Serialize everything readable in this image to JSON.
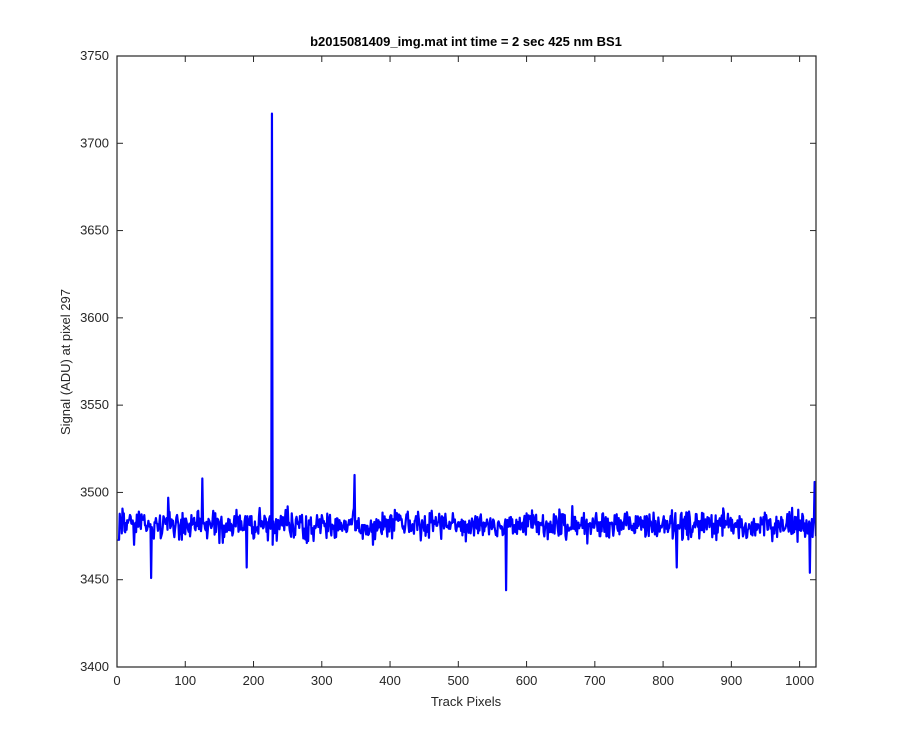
{
  "chart_data": {
    "type": "line",
    "title": "b2015081409_img.mat int time = 2 sec  425 nm BS1",
    "xlabel": "Track Pixels",
    "ylabel": "Signal (ADU) at pixel 297",
    "xlim": [
      0,
      1024
    ],
    "ylim": [
      3400,
      3750
    ],
    "xticks": [
      0,
      100,
      200,
      300,
      400,
      500,
      600,
      700,
      800,
      900,
      1000
    ],
    "yticks": [
      3400,
      3450,
      3500,
      3550,
      3600,
      3650,
      3700,
      3750
    ],
    "grid": false,
    "box": true,
    "line_color": "#0000ff",
    "series": [
      {
        "x_start": 1,
        "x_step": 1,
        "noise_mean": 3481,
        "noise_range": [
          3444,
          3510
        ],
        "samples": 1024,
        "values_sampled": [
          [
            1,
            3473
          ],
          [
            10,
            3488
          ],
          [
            25,
            3470
          ],
          [
            40,
            3487
          ],
          [
            50,
            3451
          ],
          [
            60,
            3478
          ],
          [
            75,
            3497
          ],
          [
            100,
            3476
          ],
          [
            125,
            3508
          ],
          [
            150,
            3471
          ],
          [
            175,
            3490
          ],
          [
            190,
            3457
          ],
          [
            210,
            3484
          ],
          [
            226,
            3480
          ],
          [
            227,
            3717
          ],
          [
            228,
            3470
          ],
          [
            250,
            3492
          ],
          [
            275,
            3474
          ],
          [
            300,
            3487
          ],
          [
            330,
            3478
          ],
          [
            348,
            3510
          ],
          [
            375,
            3470
          ],
          [
            400,
            3486
          ],
          [
            450,
            3478
          ],
          [
            500,
            3483
          ],
          [
            550,
            3480
          ],
          [
            570,
            3444
          ],
          [
            600,
            3488
          ],
          [
            650,
            3476
          ],
          [
            700,
            3482
          ],
          [
            750,
            3479
          ],
          [
            800,
            3484
          ],
          [
            820,
            3457
          ],
          [
            850,
            3482
          ],
          [
            900,
            3478
          ],
          [
            950,
            3485
          ],
          [
            1000,
            3484
          ],
          [
            1015,
            3454
          ],
          [
            1022,
            3506
          ]
        ]
      }
    ]
  }
}
